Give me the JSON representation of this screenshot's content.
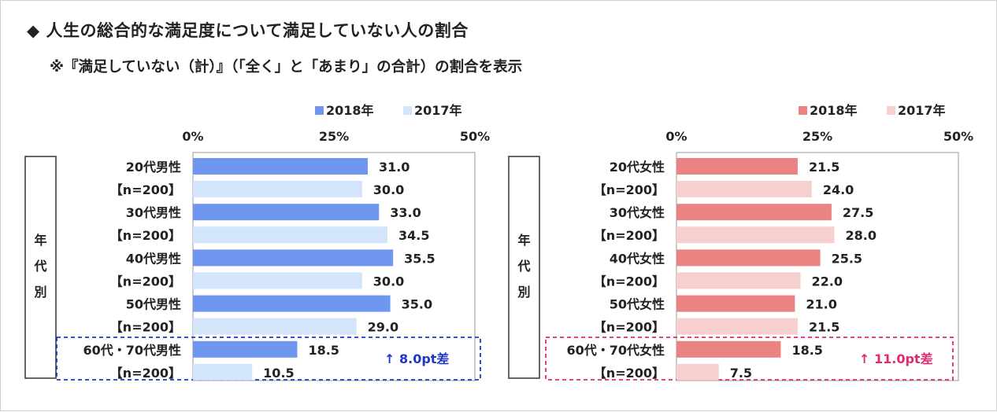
{
  "title": "◆ 人生の総合的な満足度について満足していない人の割合",
  "subtitle": "※『満足していない（計）』（「全く」と「あまり」の合計）の割合を表示",
  "colors": {
    "male_2018": "#6f97f0",
    "male_2017": "#d3e5fb",
    "female_2018": "#ec8383",
    "female_2017": "#f7cfcf",
    "male_highlight": "#1f37c8",
    "female_highlight": "#de2a71"
  },
  "chart_data": [
    {
      "type": "bar",
      "orientation": "horizontal",
      "xlim": [
        0,
        50
      ],
      "ticks": [
        "0%",
        "25%",
        "50%"
      ],
      "group_label": [
        "年",
        "代",
        "別"
      ],
      "categories": [
        [
          "20代男性",
          "【n=200】"
        ],
        [
          "30代男性",
          "【n=200】"
        ],
        [
          "40代男性",
          "【n=200】"
        ],
        [
          "50代男性",
          "【n=200】"
        ],
        [
          "60代・70代男性",
          "【n=200】"
        ]
      ],
      "series": [
        {
          "name": "2018年",
          "values": [
            31.0,
            33.0,
            35.5,
            35.0,
            18.5
          ]
        },
        {
          "name": "2017年",
          "values": [
            30.0,
            34.5,
            30.0,
            29.0,
            10.5
          ]
        }
      ],
      "legend_position": "top-right",
      "grid": false,
      "highlight": {
        "category_index": 4,
        "arrow": "↑",
        "text": "8.0pt差"
      }
    },
    {
      "type": "bar",
      "orientation": "horizontal",
      "xlim": [
        0,
        50
      ],
      "ticks": [
        "0%",
        "25%",
        "50%"
      ],
      "group_label": [
        "年",
        "代",
        "別"
      ],
      "categories": [
        [
          "20代女性",
          "【n=200】"
        ],
        [
          "30代女性",
          "【n=200】"
        ],
        [
          "40代女性",
          "【n=200】"
        ],
        [
          "50代女性",
          "【n=200】"
        ],
        [
          "60代・70代女性",
          "【n=200】"
        ]
      ],
      "series": [
        {
          "name": "2018年",
          "values": [
            21.5,
            27.5,
            25.5,
            21.0,
            18.5
          ]
        },
        {
          "name": "2017年",
          "values": [
            24.0,
            28.0,
            22.0,
            21.5,
            7.5
          ]
        }
      ],
      "legend_position": "top-right",
      "grid": false,
      "highlight": {
        "category_index": 4,
        "arrow": "↑",
        "text": "11.0pt差"
      }
    }
  ]
}
